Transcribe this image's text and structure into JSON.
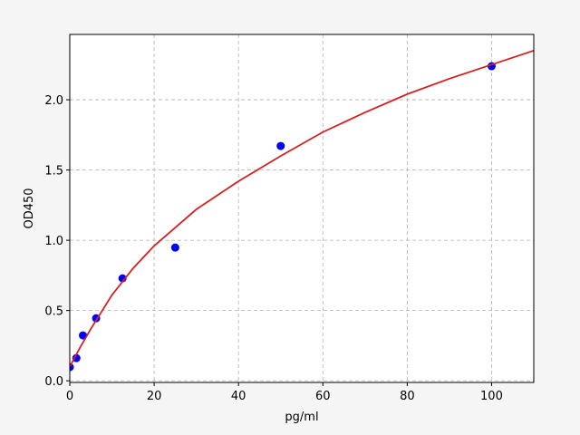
{
  "chart_data": {
    "type": "scatter",
    "xlabel": "pg/ml",
    "ylabel": "OD450",
    "series": [
      {
        "type": "scatter",
        "color": "#0000ff",
        "x": [
          0,
          1.56,
          3.125,
          6.25,
          12.5,
          25,
          50,
          100
        ],
        "values": [
          0.097,
          0.161,
          0.323,
          0.445,
          0.729,
          0.948,
          1.671,
          2.239
        ]
      },
      {
        "type": "line",
        "color": "#d62020",
        "x": [
          0,
          2.5,
          5,
          10,
          15,
          20,
          30,
          40,
          50,
          60,
          70,
          80,
          90,
          100,
          110
        ],
        "values": [
          0.1,
          0.24,
          0.37,
          0.61,
          0.8,
          0.96,
          1.22,
          1.42,
          1.6,
          1.77,
          1.91,
          2.04,
          2.15,
          2.25,
          2.35
        ]
      }
    ],
    "xlim": [
      0,
      110
    ],
    "ylim": [
      -0.012,
      2.465
    ],
    "xticks": [
      0,
      20,
      40,
      60,
      80,
      100
    ],
    "yticks": [
      {
        "value": 0,
        "label": "0.0"
      },
      {
        "value": 0.5,
        "label": "0.5"
      },
      {
        "value": 1,
        "label": "1.0"
      },
      {
        "value": 1.5,
        "label": "1.5"
      },
      {
        "value": 2,
        "label": "2.0"
      }
    ],
    "grid": true
  }
}
